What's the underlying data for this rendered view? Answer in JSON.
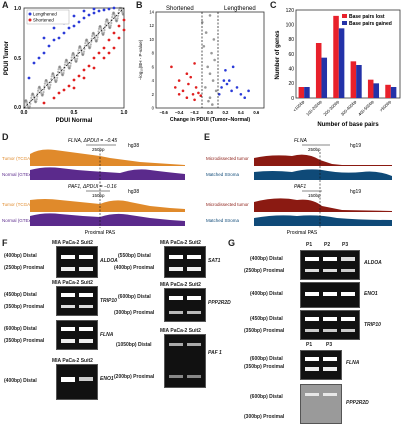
{
  "panels": {
    "A": {
      "label": "A",
      "legend": [
        "Lengthened",
        "Shortened"
      ],
      "xlabel": "PDUI Normal",
      "ylabel": "PDUI Tumor",
      "xticks": [
        "0.0",
        "0.5",
        "1.0"
      ],
      "yticks": [
        "1.0",
        "0.5",
        "0.0"
      ],
      "colors": {
        "lengthened": "#2b3bd8",
        "shortened": "#e02020",
        "neutral": "#888888"
      }
    },
    "B": {
      "label": "B",
      "left_title": "Shortened",
      "right_title": "Lengthened",
      "xlabel": "Change in PDUI (Tumor–Normal)",
      "ylabel": "−log₁₀(BH - P-value)",
      "xticks": [
        "−0.6",
        "−0.4",
        "−0.2",
        "0.0",
        "0.2",
        "0.4",
        "0.6"
      ],
      "yticks": [
        "0",
        "2",
        "4",
        "6",
        "8",
        "10",
        "12",
        "14"
      ]
    },
    "C": {
      "label": "C",
      "legend": [
        "Base pairs lost",
        "Base pairs gained"
      ],
      "xlabel": "Number of base pairs",
      "ylabel": "Number of genes",
      "yticks": [
        "0",
        "20",
        "40",
        "60",
        "80",
        "100",
        "120"
      ],
      "colors": {
        "lost": "#e8212b",
        "gained": "#2332a8"
      }
    },
    "D": {
      "label": "D",
      "track1": {
        "gene": "FLNA, ΔPDUI = −0.45",
        "assembly": "hg38",
        "scale": "250bp",
        "tumor": "Tumor (TCGA)",
        "normal": "Normal (GTEx)"
      },
      "track2": {
        "gene": "PAF1, ΔPDUI = −0.16",
        "assembly": "hg38",
        "scale": "150bp",
        "tumor": "Tumor (TCGA)",
        "normal": "Normal (GTEx)"
      },
      "pas": "Proximal PAS",
      "colors": {
        "tumor": "#e08a2b",
        "normal": "#5b2a8c"
      }
    },
    "E": {
      "label": "E",
      "track1": {
        "gene": "FLNA",
        "assembly": "hg19",
        "scale": "250bp",
        "tumor": "Microdissected tumor",
        "stroma": "Matched Stroma"
      },
      "track2": {
        "gene": "PAF1",
        "assembly": "hg19",
        "scale": "150bp",
        "tumor": "Microdissected tumor",
        "stroma": "Matched Stroma"
      },
      "pas": "Proximal PAS",
      "colors": {
        "tumor": "#8b1a12",
        "stroma": "#0f4a78"
      }
    },
    "F": {
      "label": "F",
      "lanes": "MIA PaCa-2  Suit2",
      "gels": [
        {
          "gene": "ALDOA",
          "distal": "(400bp) Distal",
          "proximal": "(250bp) Proximal"
        },
        {
          "gene": "TRIP10",
          "distal": "(450bp) Distal",
          "proximal": "(350bp) Proximal"
        },
        {
          "gene": "FLNA",
          "distal": "(600bp) Distal",
          "proximal": "(350bp) Proximal"
        },
        {
          "gene": "ENO1",
          "distal": "(400bp) Distal",
          "proximal": ""
        },
        {
          "gene": "SAT1",
          "distal": "(550bp) Distal",
          "proximal": "(400bp) Proximal"
        },
        {
          "gene": "PPP2R2D",
          "distal": "(600bp) Distal",
          "proximal": "(300bp) Proximal"
        },
        {
          "gene": "PAF 1",
          "distal": "(1050bp) Distal",
          "proximal": "(200bp) Proximal"
        }
      ]
    },
    "G": {
      "label": "G",
      "lanes_top": [
        "P1",
        "P2",
        "P3"
      ],
      "lanes_bottom": [
        "P1",
        "P3"
      ],
      "gels": [
        {
          "gene": "ALDOA",
          "distal": "(400bp) Distal",
          "proximal": "(250bp) Proximal"
        },
        {
          "gene": "ENO1",
          "distal": "(400bp) Distal",
          "proximal": ""
        },
        {
          "gene": "TRIP10",
          "distal": "(450bp) Distal",
          "proximal": "(350bp) Proximal"
        },
        {
          "gene": "FLNA",
          "distal": "(600bp) Distal",
          "proximal": "(350bp) Proximal"
        },
        {
          "gene": "PPP2R2D",
          "distal": "(600bp) Distal",
          "proximal": "(300bp) Proximal"
        }
      ]
    }
  },
  "chart_data": [
    {
      "type": "scatter",
      "panel": "A",
      "xlabel": "PDUI Normal",
      "ylabel": "PDUI Tumor",
      "xlim": [
        0,
        1
      ],
      "ylim": [
        0,
        1
      ],
      "series": [
        {
          "name": "Lengthened",
          "points": [
            [
              0.05,
              0.3
            ],
            [
              0.1,
              0.45
            ],
            [
              0.15,
              0.5
            ],
            [
              0.2,
              0.55
            ],
            [
              0.25,
              0.62
            ],
            [
              0.3,
              0.68
            ],
            [
              0.35,
              0.7
            ],
            [
              0.4,
              0.75
            ],
            [
              0.45,
              0.8
            ],
            [
              0.5,
              0.82
            ],
            [
              0.55,
              0.86
            ],
            [
              0.6,
              0.9
            ],
            [
              0.65,
              0.93
            ],
            [
              0.7,
              0.95
            ],
            [
              0.75,
              0.97
            ],
            [
              0.8,
              0.98
            ],
            [
              0.85,
              0.99
            ],
            [
              0.9,
              1.0
            ],
            [
              0.4,
              0.85
            ],
            [
              0.5,
              0.92
            ],
            [
              0.6,
              0.97
            ],
            [
              0.3,
              0.8
            ],
            [
              0.2,
              0.7
            ],
            [
              0.7,
              0.99
            ]
          ]
        },
        {
          "name": "Shortened",
          "points": [
            [
              0.2,
              0.05
            ],
            [
              0.3,
              0.1
            ],
            [
              0.35,
              0.15
            ],
            [
              0.4,
              0.18
            ],
            [
              0.45,
              0.22
            ],
            [
              0.5,
              0.28
            ],
            [
              0.55,
              0.32
            ],
            [
              0.6,
              0.38
            ],
            [
              0.65,
              0.42
            ],
            [
              0.7,
              0.5
            ],
            [
              0.75,
              0.55
            ],
            [
              0.8,
              0.6
            ],
            [
              0.85,
              0.68
            ],
            [
              0.9,
              0.75
            ],
            [
              0.95,
              0.82
            ],
            [
              1.0,
              0.88
            ],
            [
              0.6,
              0.3
            ],
            [
              0.7,
              0.4
            ],
            [
              0.8,
              0.5
            ],
            [
              0.9,
              0.6
            ],
            [
              0.95,
              0.7
            ],
            [
              1.0,
              0.78
            ],
            [
              0.5,
              0.2
            ],
            [
              0.85,
              0.55
            ]
          ]
        }
      ]
    },
    {
      "type": "scatter",
      "panel": "B",
      "xlabel": "Change in PDUI (Tumor–Normal)",
      "xlim": [
        -0.7,
        0.7
      ],
      "ylim": [
        0,
        14
      ],
      "series": [
        {
          "name": "Shortened",
          "points": [
            [
              -0.5,
              6
            ],
            [
              -0.45,
              3
            ],
            [
              -0.4,
              4
            ],
            [
              -0.35,
              2.5
            ],
            [
              -0.3,
              5
            ],
            [
              -0.28,
              3.5
            ],
            [
              -0.25,
              4.5
            ],
            [
              -0.22,
              2
            ],
            [
              -0.2,
              6.5
            ],
            [
              -0.18,
              3
            ],
            [
              -0.15,
              2.2
            ],
            [
              -0.12,
              1.8
            ],
            [
              -0.3,
              1.5
            ],
            [
              -0.4,
              2
            ],
            [
              -0.2,
              1.2
            ]
          ]
        },
        {
          "name": "Lengthened",
          "points": [
            [
              0.12,
              2
            ],
            [
              0.15,
              3
            ],
            [
              0.18,
              4
            ],
            [
              0.2,
              5.5
            ],
            [
              0.22,
              3.5
            ],
            [
              0.25,
              4
            ],
            [
              0.28,
              2.5
            ],
            [
              0.3,
              6
            ],
            [
              0.35,
              3
            ],
            [
              0.4,
              2
            ],
            [
              0.45,
              1.5
            ],
            [
              0.5,
              2.5
            ]
          ]
        },
        {
          "name": "Not significant",
          "points": [
            [
              -0.1,
              12.5
            ],
            [
              -0.05,
              11
            ],
            [
              0.0,
              13.5
            ],
            [
              0.05,
              10
            ],
            [
              -0.08,
              9
            ],
            [
              0.02,
              8
            ],
            [
              0.06,
              7
            ],
            [
              -0.03,
              6
            ],
            [
              0.0,
              5
            ],
            [
              0.04,
              4
            ],
            [
              -0.06,
              3
            ],
            [
              0.08,
              2.5
            ],
            [
              0.0,
              1.5
            ],
            [
              -0.02,
              1
            ],
            [
              0.03,
              0.5
            ]
          ]
        }
      ]
    },
    {
      "type": "bar",
      "panel": "C",
      "categories": [
        "<100bp",
        "100-200bp",
        "200-300bp",
        "300-400bp",
        "400-500bp",
        ">500bp"
      ],
      "series": [
        {
          "name": "Base pairs lost",
          "values": [
            15,
            75,
            112,
            50,
            25,
            18
          ]
        },
        {
          "name": "Base pairs gained",
          "values": [
            15,
            55,
            95,
            45,
            20,
            15
          ]
        }
      ],
      "xlabel": "Number of base pairs",
      "ylabel": "Number of genes",
      "ylim": [
        0,
        120
      ]
    }
  ]
}
